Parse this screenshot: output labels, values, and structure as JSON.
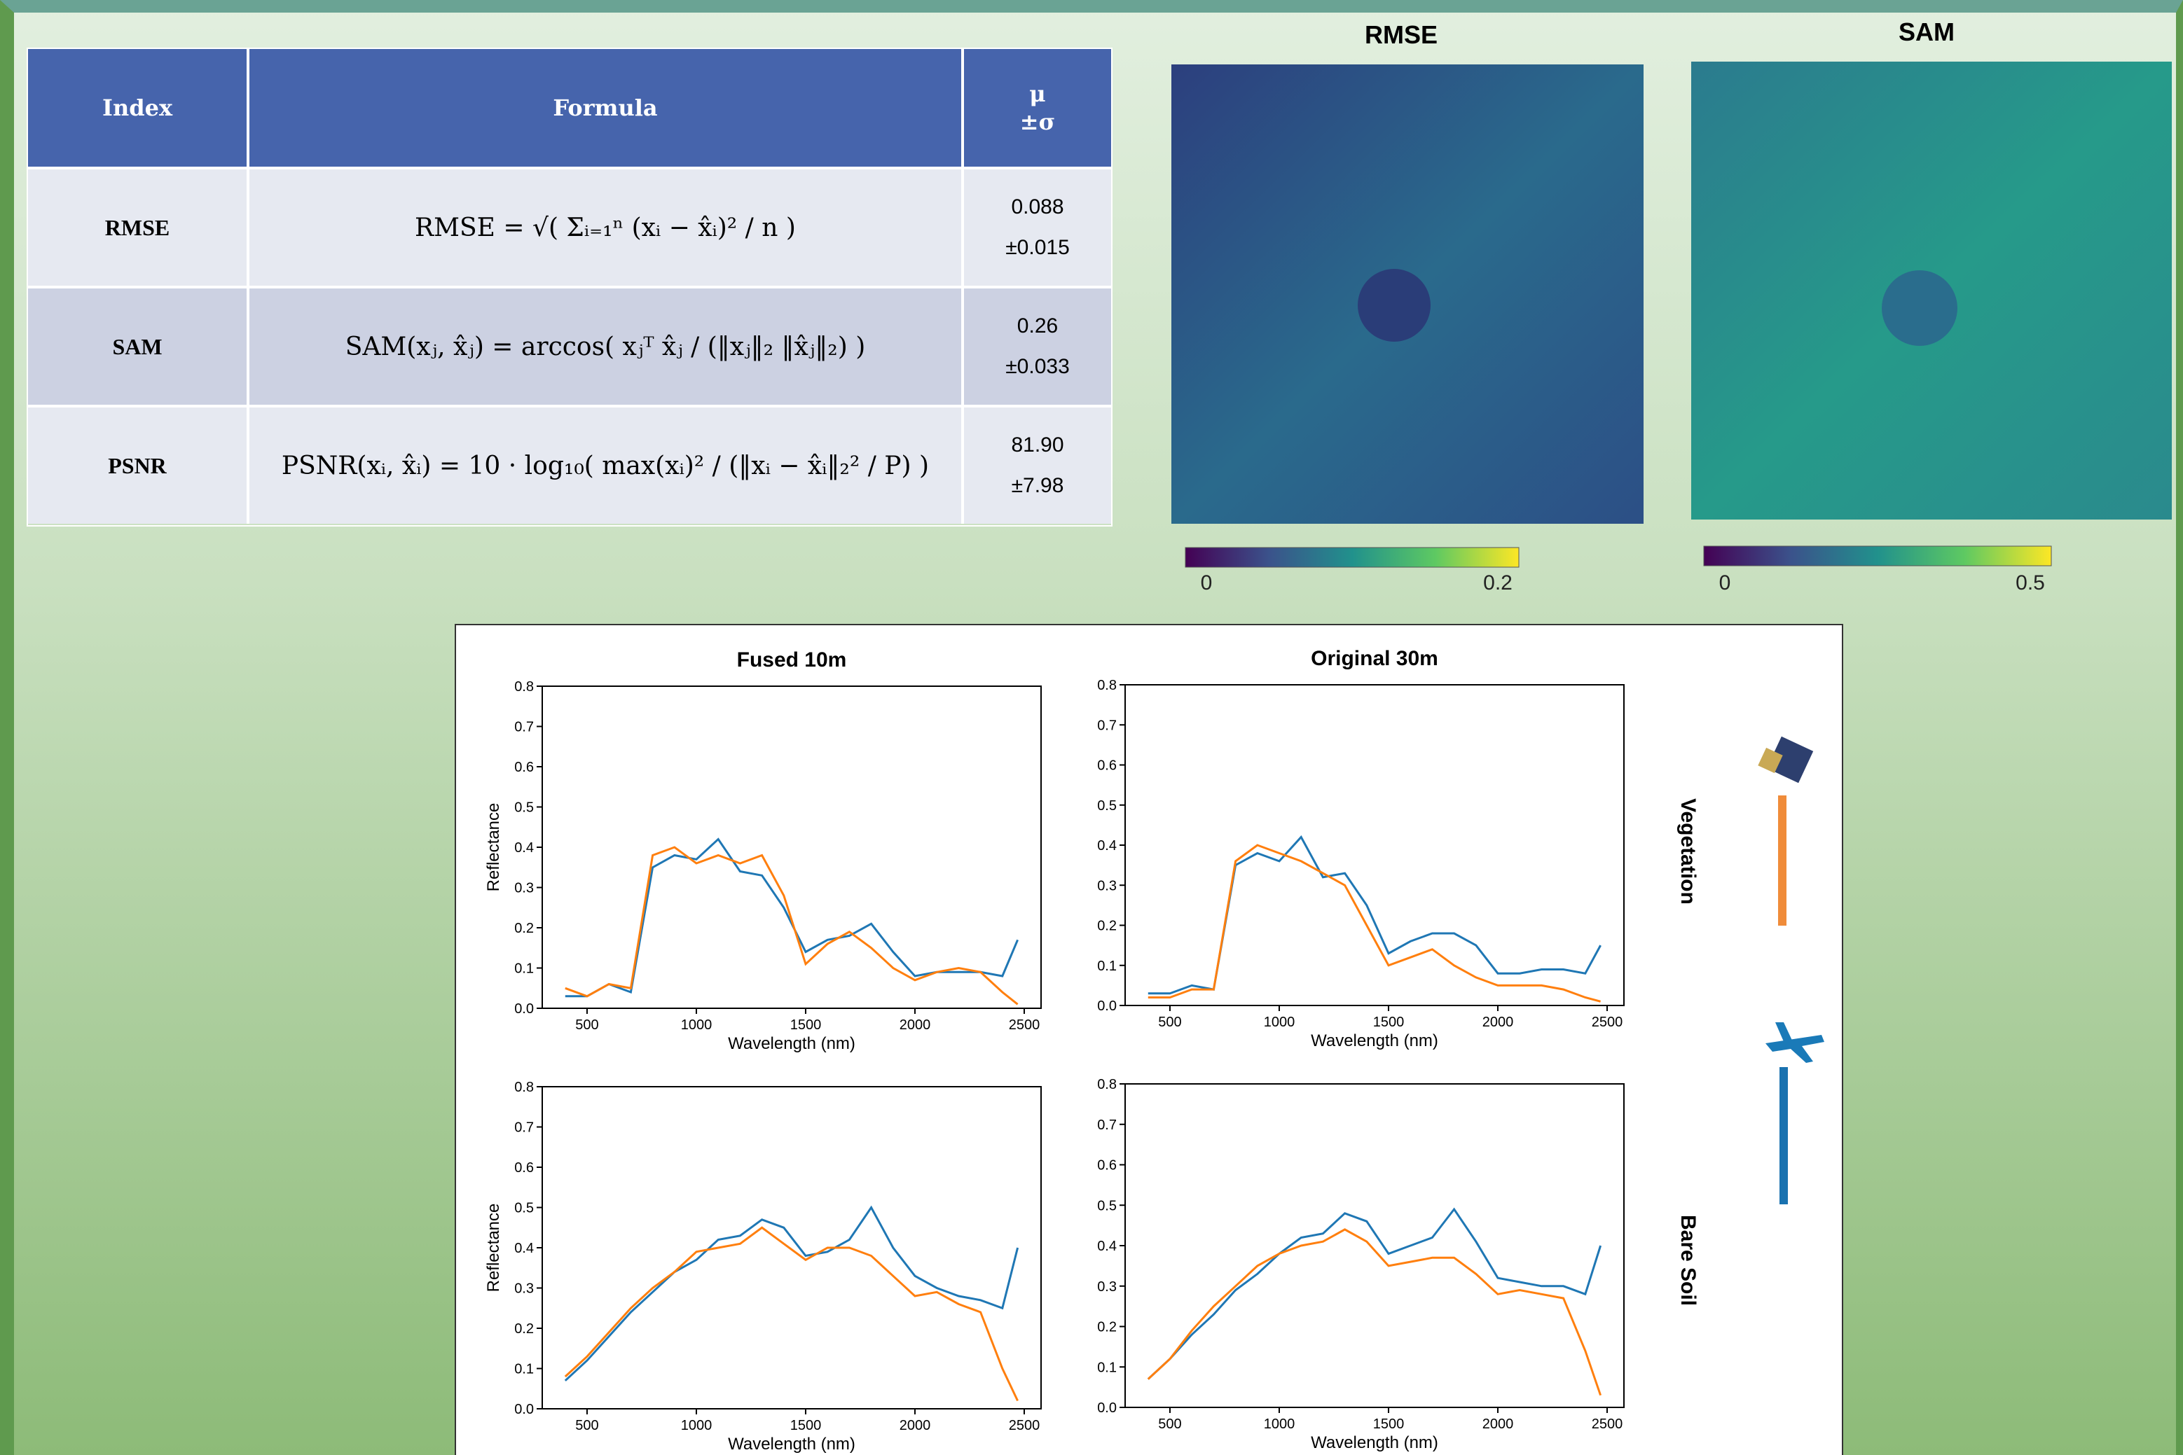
{
  "table": {
    "header": {
      "index": "Index",
      "formula": "Formula",
      "stats": [
        "μ",
        "±σ"
      ]
    },
    "rows": [
      {
        "index": "RMSE",
        "formula": "RMSE = √( Σᵢ₌₁ⁿ (xᵢ − x̂ᵢ)² / n )",
        "mean": "0.088",
        "std": "±0.015"
      },
      {
        "index": "SAM",
        "formula": "SAM(xⱼ, x̂ⱼ) = arccos( xⱼᵀ x̂ⱼ / (‖xⱼ‖₂ ‖x̂ⱼ‖₂) )",
        "mean": "0.26",
        "std": "±0.033"
      },
      {
        "index": "PSNR",
        "formula": "PSNR(xᵢ, x̂ᵢ) = 10 · log₁₀( max(xᵢ)² / (‖xᵢ − x̂ᵢ‖₂² / P) )",
        "mean": "81.90",
        "std": "±7.98"
      }
    ]
  },
  "maps": [
    {
      "title": "RMSE",
      "colorbar": {
        "lim": [
          0,
          0.2
        ],
        "ticks": [
          0,
          0.2
        ]
      }
    },
    {
      "title": "SAM",
      "colorbar": {
        "lim": [
          0,
          0.5
        ],
        "ticks": [
          0,
          0.5
        ]
      }
    }
  ],
  "row_labels": [
    "Vegetation",
    "Bare Soil"
  ],
  "chart_data": [
    {
      "type": "line",
      "title": "Fused 10m",
      "xlabel": "Wavelength (nm)",
      "ylabel": "Reflectance",
      "x": [
        400,
        500,
        600,
        700,
        800,
        900,
        1000,
        1100,
        1200,
        1300,
        1400,
        1500,
        1600,
        1700,
        1800,
        1900,
        2000,
        2100,
        2200,
        2300,
        2400,
        2470
      ],
      "xlim": [
        295,
        2577
      ],
      "xticks": [
        500,
        1000,
        1500,
        2000,
        2500
      ],
      "ylim": [
        0,
        0.8
      ],
      "yticks": [
        {
          "value": 0,
          "label": "0.0"
        },
        0.1,
        0.2,
        0.3,
        0.4,
        0.5,
        0.6,
        0.7,
        0.8
      ],
      "series": [
        {
          "color": "#1f77b4",
          "values": [
            0.03,
            0.03,
            0.06,
            0.04,
            0.35,
            0.38,
            0.37,
            0.42,
            0.34,
            0.33,
            0.25,
            0.14,
            0.17,
            0.18,
            0.21,
            0.14,
            0.08,
            0.09,
            0.09,
            0.09,
            0.08,
            0.17
          ]
        },
        {
          "color": "#ff7f0e",
          "values": [
            0.05,
            0.03,
            0.06,
            0.05,
            0.38,
            0.4,
            0.36,
            0.38,
            0.36,
            0.38,
            0.28,
            0.11,
            0.16,
            0.19,
            0.15,
            0.1,
            0.07,
            0.09,
            0.1,
            0.09,
            0.04,
            0.01
          ]
        }
      ]
    },
    {
      "type": "line",
      "title": "Original 30m",
      "xlabel": "Wavelength (nm)",
      "x": [
        400,
        500,
        600,
        700,
        800,
        900,
        1000,
        1100,
        1200,
        1300,
        1400,
        1500,
        1600,
        1700,
        1800,
        1900,
        2000,
        2100,
        2200,
        2300,
        2400,
        2470
      ],
      "xlim": [
        295,
        2577
      ],
      "xticks": [
        500,
        1000,
        1500,
        2000,
        2500
      ],
      "ylim": [
        0,
        0.8
      ],
      "yticks": [
        {
          "value": 0,
          "label": "0.0"
        },
        0.1,
        0.2,
        0.3,
        0.4,
        0.5,
        0.6,
        0.7,
        0.8
      ],
      "series": [
        {
          "color": "#1f77b4",
          "values": [
            0.03,
            0.03,
            0.05,
            0.04,
            0.35,
            0.38,
            0.36,
            0.42,
            0.32,
            0.33,
            0.25,
            0.13,
            0.16,
            0.18,
            0.18,
            0.15,
            0.08,
            0.08,
            0.09,
            0.09,
            0.08,
            0.15
          ]
        },
        {
          "color": "#ff7f0e",
          "values": [
            0.02,
            0.02,
            0.04,
            0.04,
            0.36,
            0.4,
            0.38,
            0.36,
            0.33,
            0.3,
            0.2,
            0.1,
            0.12,
            0.14,
            0.1,
            0.07,
            0.05,
            0.05,
            0.05,
            0.04,
            0.02,
            0.01
          ]
        }
      ]
    },
    {
      "type": "line",
      "xlabel": "Wavelength (nm)",
      "ylabel": "Reflectance",
      "x": [
        400,
        500,
        600,
        700,
        800,
        900,
        1000,
        1100,
        1200,
        1300,
        1400,
        1500,
        1600,
        1700,
        1800,
        1900,
        2000,
        2100,
        2200,
        2300,
        2400,
        2470
      ],
      "xlim": [
        295,
        2577
      ],
      "xticks": [
        500,
        1000,
        1500,
        2000,
        2500
      ],
      "ylim": [
        0,
        0.8
      ],
      "yticks": [
        {
          "value": 0,
          "label": "0.0"
        },
        0.1,
        0.2,
        0.3,
        0.4,
        0.5,
        0.6,
        0.7,
        0.8
      ],
      "series": [
        {
          "color": "#1f77b4",
          "values": [
            0.07,
            0.12,
            0.18,
            0.24,
            0.29,
            0.34,
            0.37,
            0.42,
            0.43,
            0.47,
            0.45,
            0.38,
            0.39,
            0.42,
            0.5,
            0.4,
            0.33,
            0.3,
            0.28,
            0.27,
            0.25,
            0.4
          ]
        },
        {
          "color": "#ff7f0e",
          "values": [
            0.08,
            0.13,
            0.19,
            0.25,
            0.3,
            0.34,
            0.39,
            0.4,
            0.41,
            0.45,
            0.41,
            0.37,
            0.4,
            0.4,
            0.38,
            0.33,
            0.28,
            0.29,
            0.26,
            0.24,
            0.1,
            0.02
          ]
        }
      ]
    },
    {
      "type": "line",
      "xlabel": "Wavelength (nm)",
      "x": [
        400,
        500,
        600,
        700,
        800,
        900,
        1000,
        1100,
        1200,
        1300,
        1400,
        1500,
        1600,
        1700,
        1800,
        1900,
        2000,
        2100,
        2200,
        2300,
        2400,
        2470
      ],
      "xlim": [
        295,
        2577
      ],
      "xticks": [
        500,
        1000,
        1500,
        2000,
        2500
      ],
      "ylim": [
        0,
        0.8
      ],
      "yticks": [
        {
          "value": 0,
          "label": "0.0"
        },
        0.1,
        0.2,
        0.3,
        0.4,
        0.5,
        0.6,
        0.7,
        0.8
      ],
      "series": [
        {
          "color": "#1f77b4",
          "values": [
            0.07,
            0.12,
            0.18,
            0.23,
            0.29,
            0.33,
            0.38,
            0.42,
            0.43,
            0.48,
            0.46,
            0.38,
            0.4,
            0.42,
            0.49,
            0.41,
            0.32,
            0.31,
            0.3,
            0.3,
            0.28,
            0.4
          ]
        },
        {
          "color": "#ff7f0e",
          "values": [
            0.07,
            0.12,
            0.19,
            0.25,
            0.3,
            0.35,
            0.38,
            0.4,
            0.41,
            0.44,
            0.41,
            0.35,
            0.36,
            0.37,
            0.37,
            0.33,
            0.28,
            0.29,
            0.28,
            0.27,
            0.14,
            0.03
          ]
        }
      ]
    }
  ]
}
